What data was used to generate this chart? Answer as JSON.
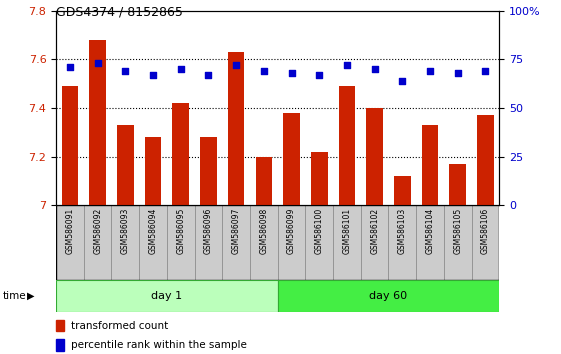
{
  "title": "GDS4374 / 8152865",
  "samples": [
    "GSM586091",
    "GSM586092",
    "GSM586093",
    "GSM586094",
    "GSM586095",
    "GSM586096",
    "GSM586097",
    "GSM586098",
    "GSM586099",
    "GSM586100",
    "GSM586101",
    "GSM586102",
    "GSM586103",
    "GSM586104",
    "GSM586105",
    "GSM586106"
  ],
  "transformed_count": [
    7.49,
    7.68,
    7.33,
    7.28,
    7.42,
    7.28,
    7.63,
    7.2,
    7.38,
    7.22,
    7.49,
    7.4,
    7.12,
    7.33,
    7.17,
    7.37
  ],
  "percentile_rank": [
    71,
    73,
    69,
    67,
    70,
    67,
    72,
    69,
    68,
    67,
    72,
    70,
    64,
    69,
    68,
    69
  ],
  "ylim_left": [
    7.0,
    7.8
  ],
  "ylim_right": [
    0,
    100
  ],
  "yticks_left": [
    7.0,
    7.2,
    7.4,
    7.6,
    7.8
  ],
  "yticks_left_labels": [
    "7",
    "7.2",
    "7.4",
    "7.6",
    "7.8"
  ],
  "yticks_right": [
    0,
    25,
    50,
    75,
    100
  ],
  "yticks_right_labels": [
    "0",
    "25",
    "50",
    "75",
    "100%"
  ],
  "bar_color": "#CC2200",
  "scatter_color": "#0000CC",
  "day1_group": [
    0,
    7
  ],
  "day60_group": [
    8,
    15
  ],
  "day1_label": "day 1",
  "day60_label": "day 60",
  "day1_color": "#BBFFBB",
  "day60_color": "#44EE44",
  "xlabel_time": "time",
  "legend_bar": "transformed count",
  "legend_scatter": "percentile rank within the sample",
  "tick_label_bg": "#CCCCCC",
  "grid_yticks": [
    7.2,
    7.4,
    7.6
  ]
}
